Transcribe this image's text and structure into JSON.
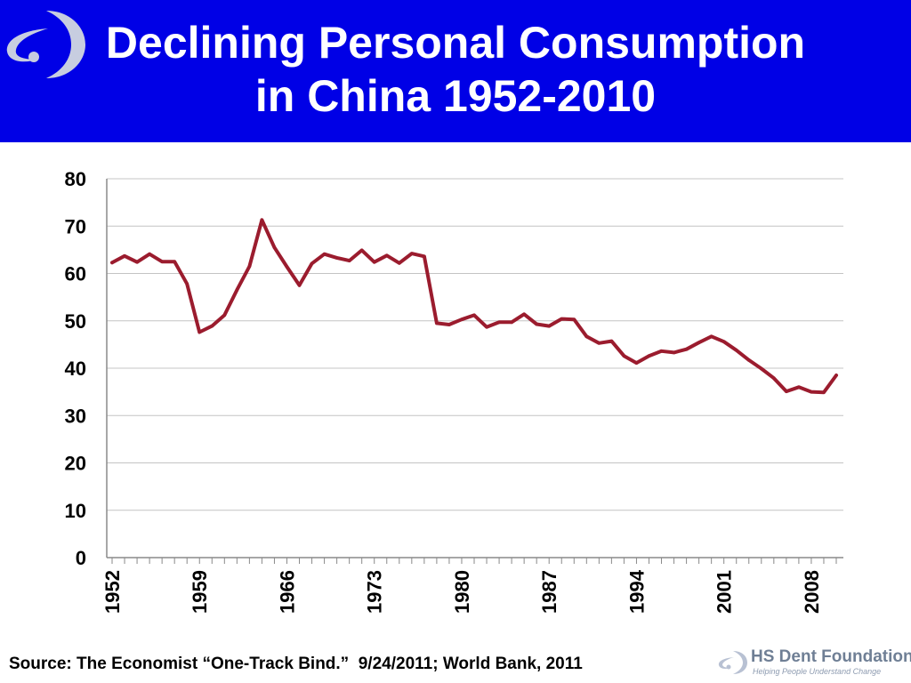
{
  "header": {
    "title_line1": "Declining Personal Consumption",
    "title_line2": "in China 1952-2010",
    "background": "#0000E6",
    "logo_icon": "hs-dent-swoosh-logo"
  },
  "chart_data": {
    "type": "line",
    "title": "Declining Personal Consumption in China 1952-2010",
    "xlabel": "",
    "ylabel": "",
    "ylim": [
      0,
      80
    ],
    "yticks": [
      0,
      10,
      20,
      30,
      40,
      50,
      60,
      70,
      80
    ],
    "xlim": [
      1952,
      2010
    ],
    "xtick_labels": [
      "1952",
      "1959",
      "1966",
      "1973",
      "1980",
      "1987",
      "1994",
      "2001",
      "2008"
    ],
    "grid": "horizontal",
    "line_color": "#9B1C2E",
    "series": [
      {
        "x": [
          1952,
          1953,
          1954,
          1955,
          1956,
          1957,
          1958,
          1959,
          1960,
          1961,
          1962,
          1963,
          1964,
          1965,
          1966,
          1967,
          1968,
          1969,
          1970,
          1971,
          1972,
          1973,
          1974,
          1975,
          1976,
          1977,
          1978,
          1979,
          1980,
          1981,
          1982,
          1983,
          1984,
          1985,
          1986,
          1987,
          1988,
          1989,
          1990,
          1991,
          1992,
          1993,
          1994,
          1995,
          1996,
          1997,
          1998,
          1999,
          2000,
          2001,
          2002,
          2003,
          2004,
          2005,
          2006,
          2007,
          2008,
          2009,
          2010
        ],
        "values": [
          62.3,
          63.7,
          62.4,
          64.1,
          62.5,
          62.5,
          57.8,
          47.6,
          48.9,
          51.2,
          56.5,
          61.5,
          71.3,
          65.5,
          61.4,
          57.5,
          62.1,
          64.1,
          63.3,
          62.7,
          64.9,
          62.4,
          63.8,
          62.2,
          64.2,
          63.6,
          49.5,
          49.2,
          50.3,
          51.2,
          48.7,
          49.7,
          49.7,
          51.4,
          49.3,
          48.9,
          50.4,
          50.3,
          46.7,
          45.3,
          45.7,
          42.6,
          41.1,
          42.6,
          43.6,
          43.3,
          44.0,
          45.4,
          46.7,
          45.6,
          43.8,
          41.7,
          39.9,
          37.9,
          35.1,
          36.0,
          35.0,
          34.9,
          38.5
        ]
      }
    ]
  },
  "footer": {
    "source": "Source: The Economist “One-Track Bind.”  9/24/2011; World Bank, 2011",
    "logo_name": "HS Dent Foundation",
    "logo_tagline": "Helping People Understand Change"
  }
}
